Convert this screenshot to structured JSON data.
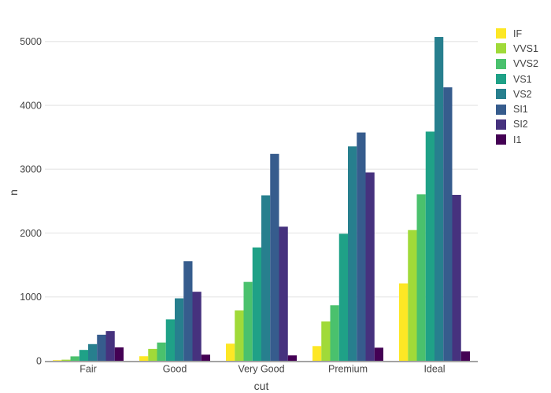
{
  "chart_data": {
    "type": "bar",
    "mode": "grouped",
    "title": "",
    "xlabel": "cut",
    "ylabel": "n",
    "categories": [
      "Fair",
      "Good",
      "Very Good",
      "Premium",
      "Ideal"
    ],
    "series": [
      {
        "name": "IF",
        "color": "#fde725",
        "values": [
          9,
          71,
          268,
          230,
          1212
        ]
      },
      {
        "name": "VVS1",
        "color": "#a0da39",
        "values": [
          17,
          186,
          789,
          616,
          2047
        ]
      },
      {
        "name": "VVS2",
        "color": "#4ac16d",
        "values": [
          69,
          286,
          1235,
          870,
          2606
        ]
      },
      {
        "name": "VS1",
        "color": "#1fa187",
        "values": [
          170,
          648,
          1775,
          1989,
          3589
        ]
      },
      {
        "name": "VS2",
        "color": "#277f8e",
        "values": [
          261,
          978,
          2591,
          3357,
          5071
        ]
      },
      {
        "name": "SI1",
        "color": "#365c8d",
        "values": [
          408,
          1560,
          3240,
          3575,
          4282
        ]
      },
      {
        "name": "SI2",
        "color": "#46327e",
        "values": [
          466,
          1081,
          2100,
          2949,
          2598
        ]
      },
      {
        "name": "I1",
        "color": "#440154",
        "values": [
          210,
          96,
          84,
          205,
          146
        ]
      }
    ],
    "yticks": [
      0,
      1000,
      2000,
      3000,
      4000,
      5000
    ],
    "ylim": [
      0,
      5460
    ],
    "grid": "horizontal",
    "legend_position": "top-right",
    "colors": {
      "background": "#ffffff",
      "gridline": "#e8e8e8",
      "axis_line": "#a3a3a3",
      "text": "#444444"
    }
  }
}
